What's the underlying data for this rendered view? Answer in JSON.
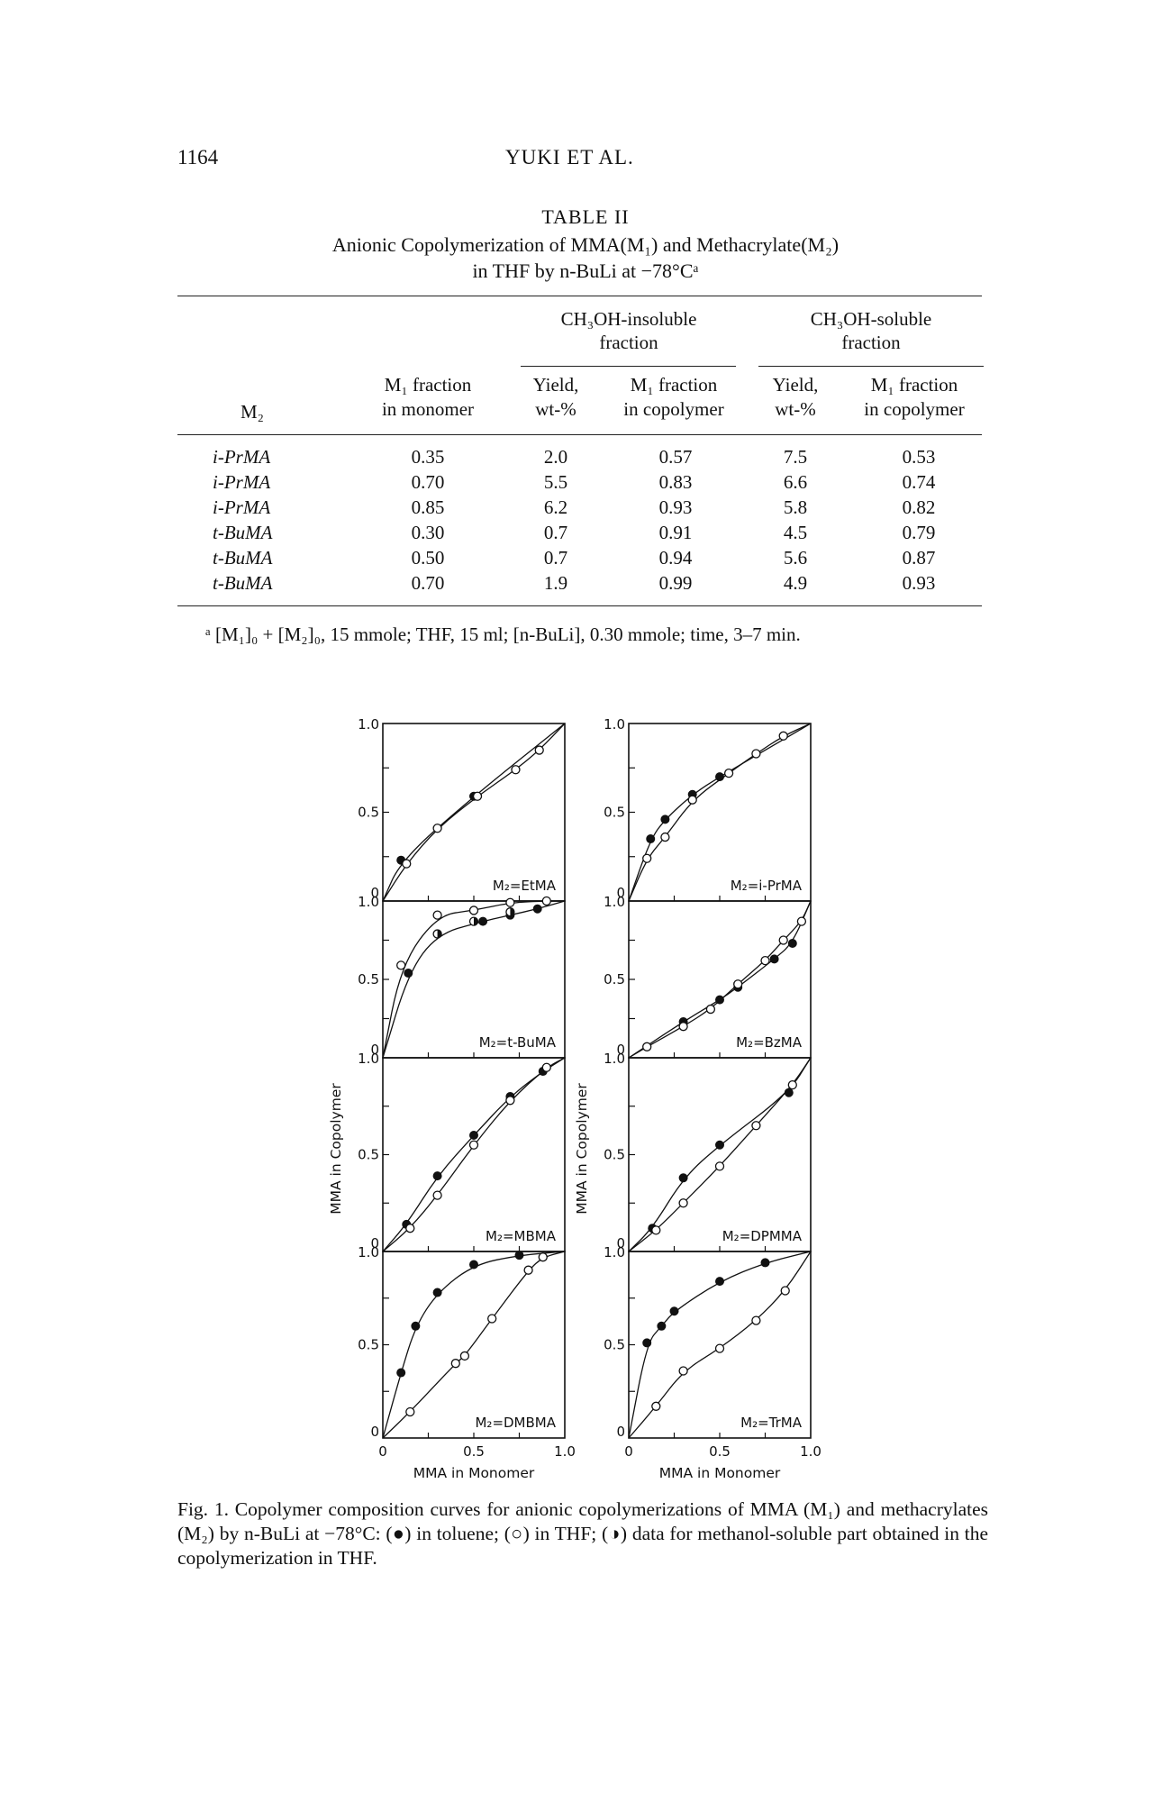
{
  "header": {
    "page_number": "1164",
    "running_head": "YUKI ET AL."
  },
  "table": {
    "label": "TABLE II",
    "title_line1": "Anionic Copolymerization of MMA(M₁) and Methacrylate(M₂)",
    "title_line2": "in THF by n-BuLi at −78°Cᵃ",
    "group_insoluble": [
      "CH₃OH-insoluble",
      "fraction"
    ],
    "group_soluble": [
      "CH₃OH-soluble",
      "fraction"
    ],
    "col_m2": "M₂",
    "col_m1_monomer": [
      "M₁ fraction",
      "in monomer"
    ],
    "col_yield": [
      "Yield,",
      "wt-%"
    ],
    "col_m1_copolymer": [
      "M₁ fraction",
      "in copolymer"
    ],
    "rows": [
      {
        "m2": "i-PrMA",
        "m1_monomer": "0.35",
        "ins_yield": "2.0",
        "ins_m1": "0.57",
        "sol_yield": "7.5",
        "sol_m1": "0.53"
      },
      {
        "m2": "i-PrMA",
        "m1_monomer": "0.70",
        "ins_yield": "5.5",
        "ins_m1": "0.83",
        "sol_yield": "6.6",
        "sol_m1": "0.74"
      },
      {
        "m2": "i-PrMA",
        "m1_monomer": "0.85",
        "ins_yield": "6.2",
        "ins_m1": "0.93",
        "sol_yield": "5.8",
        "sol_m1": "0.82"
      },
      {
        "m2": "t-BuMA",
        "m1_monomer": "0.30",
        "ins_yield": "0.7",
        "ins_m1": "0.91",
        "sol_yield": "4.5",
        "sol_m1": "0.79"
      },
      {
        "m2": "t-BuMA",
        "m1_monomer": "0.50",
        "ins_yield": "0.7",
        "ins_m1": "0.94",
        "sol_yield": "5.6",
        "sol_m1": "0.87"
      },
      {
        "m2": "t-BuMA",
        "m1_monomer": "0.70",
        "ins_yield": "1.9",
        "ins_m1": "0.99",
        "sol_yield": "4.9",
        "sol_m1": "0.93"
      }
    ],
    "footnote": "ᵃ [M₁]₀ + [M₂]₀, 15 mmole; THF, 15 ml; [n-BuLi], 0.30 mmole; time, 3–7 min."
  },
  "figure": {
    "caption": "Fig. 1. Copolymer composition curves for anionic copolymerizations of MMA (M₁) and methacrylates (M₂) by n-BuLi at −78°C: (●) in toluene; (○) in THF; (◑) data for methanol-soluble part obtained in the copolymerization in THF.",
    "xlabel": "MMA in Monomer",
    "ylabel": "MMA in Copolymer",
    "tick_labels": [
      "0",
      "0.5",
      "1.0"
    ],
    "series_marker_colors": {
      "toluene": "#111111",
      "thf": "#ffffff"
    }
  },
  "chart_data": [
    {
      "type": "scatter",
      "panel": "left-1",
      "label": "M₂=EtMA",
      "xlim": [
        0,
        1
      ],
      "ylim": [
        0,
        1
      ],
      "series": [
        {
          "marker": "filled",
          "points": [
            [
              0.1,
              0.23
            ],
            [
              0.5,
              0.59
            ]
          ]
        },
        {
          "marker": "open",
          "points": [
            [
              0.13,
              0.21
            ],
            [
              0.3,
              0.41
            ],
            [
              0.52,
              0.59
            ],
            [
              0.73,
              0.74
            ],
            [
              0.86,
              0.85
            ]
          ]
        }
      ]
    },
    {
      "type": "scatter",
      "panel": "right-1",
      "label": "M₂=i-PrMA",
      "xlim": [
        0,
        1
      ],
      "ylim": [
        0,
        1
      ],
      "series": [
        {
          "marker": "filled",
          "points": [
            [
              0.12,
              0.35
            ],
            [
              0.2,
              0.46
            ],
            [
              0.35,
              0.6
            ],
            [
              0.5,
              0.7
            ]
          ]
        },
        {
          "marker": "open",
          "points": [
            [
              0.1,
              0.24
            ],
            [
              0.2,
              0.36
            ],
            [
              0.35,
              0.57
            ],
            [
              0.55,
              0.72
            ],
            [
              0.7,
              0.83
            ],
            [
              0.85,
              0.93
            ]
          ]
        }
      ]
    },
    {
      "type": "scatter",
      "panel": "left-2",
      "label": "M₂=t-BuMA",
      "xlim": [
        0,
        1
      ],
      "ylim": [
        0,
        1
      ],
      "series": [
        {
          "marker": "filled",
          "points": [
            [
              0.14,
              0.54
            ],
            [
              0.3,
              0.79
            ],
            [
              0.55,
              0.87
            ],
            [
              0.7,
              0.91
            ],
            [
              0.85,
              0.95
            ]
          ]
        },
        {
          "marker": "open",
          "points": [
            [
              0.1,
              0.59
            ],
            [
              0.3,
              0.91
            ],
            [
              0.5,
              0.94
            ],
            [
              0.7,
              0.99
            ],
            [
              0.9,
              1.0
            ]
          ]
        },
        {
          "marker": "half",
          "points": [
            [
              0.3,
              0.79
            ],
            [
              0.5,
              0.87
            ],
            [
              0.7,
              0.93
            ]
          ]
        }
      ]
    },
    {
      "type": "scatter",
      "panel": "right-2",
      "label": "M₂=BzMA",
      "xlim": [
        0,
        1
      ],
      "ylim": [
        0,
        1
      ],
      "series": [
        {
          "marker": "filled",
          "points": [
            [
              0.3,
              0.23
            ],
            [
              0.5,
              0.37
            ],
            [
              0.6,
              0.45
            ],
            [
              0.8,
              0.63
            ],
            [
              0.9,
              0.73
            ]
          ]
        },
        {
          "marker": "open",
          "points": [
            [
              0.1,
              0.07
            ],
            [
              0.3,
              0.2
            ],
            [
              0.45,
              0.31
            ],
            [
              0.6,
              0.47
            ],
            [
              0.75,
              0.62
            ],
            [
              0.85,
              0.75
            ],
            [
              0.95,
              0.87
            ]
          ]
        }
      ]
    },
    {
      "type": "scatter",
      "panel": "left-3",
      "label": "M₂=MBMA",
      "xlim": [
        0,
        1
      ],
      "ylim": [
        0,
        1
      ],
      "series": [
        {
          "marker": "filled",
          "points": [
            [
              0.13,
              0.14
            ],
            [
              0.3,
              0.39
            ],
            [
              0.5,
              0.6
            ],
            [
              0.7,
              0.8
            ],
            [
              0.88,
              0.93
            ]
          ]
        },
        {
          "marker": "open",
          "points": [
            [
              0.15,
              0.12
            ],
            [
              0.3,
              0.29
            ],
            [
              0.5,
              0.55
            ],
            [
              0.7,
              0.78
            ],
            [
              0.9,
              0.95
            ]
          ]
        }
      ]
    },
    {
      "type": "scatter",
      "panel": "right-3",
      "label": "M₂=DPMMA",
      "xlim": [
        0,
        1
      ],
      "ylim": [
        0,
        1
      ],
      "series": [
        {
          "marker": "filled",
          "points": [
            [
              0.13,
              0.12
            ],
            [
              0.3,
              0.38
            ],
            [
              0.5,
              0.55
            ],
            [
              0.88,
              0.82
            ]
          ]
        },
        {
          "marker": "open",
          "points": [
            [
              0.15,
              0.11
            ],
            [
              0.3,
              0.25
            ],
            [
              0.5,
              0.44
            ],
            [
              0.7,
              0.65
            ],
            [
              0.9,
              0.86
            ]
          ]
        }
      ]
    },
    {
      "type": "scatter",
      "panel": "left-4",
      "label": "M₂=DMBMA",
      "xlim": [
        0,
        1
      ],
      "ylim": [
        0,
        1
      ],
      "series": [
        {
          "marker": "filled",
          "points": [
            [
              0.1,
              0.35
            ],
            [
              0.18,
              0.6
            ],
            [
              0.3,
              0.78
            ],
            [
              0.5,
              0.93
            ],
            [
              0.75,
              0.98
            ]
          ]
        },
        {
          "marker": "open",
          "points": [
            [
              0.15,
              0.14
            ],
            [
              0.4,
              0.4
            ],
            [
              0.45,
              0.44
            ],
            [
              0.6,
              0.64
            ],
            [
              0.8,
              0.9
            ],
            [
              0.88,
              0.97
            ]
          ]
        }
      ]
    },
    {
      "type": "scatter",
      "panel": "right-4",
      "label": "M₂=TrMA",
      "xlim": [
        0,
        1
      ],
      "ylim": [
        0,
        1
      ],
      "series": [
        {
          "marker": "filled",
          "points": [
            [
              0.1,
              0.51
            ],
            [
              0.18,
              0.6
            ],
            [
              0.25,
              0.68
            ],
            [
              0.5,
              0.84
            ],
            [
              0.75,
              0.94
            ]
          ]
        },
        {
          "marker": "open",
          "points": [
            [
              0.15,
              0.17
            ],
            [
              0.3,
              0.36
            ],
            [
              0.5,
              0.48
            ],
            [
              0.7,
              0.63
            ],
            [
              0.86,
              0.79
            ]
          ]
        }
      ]
    }
  ]
}
